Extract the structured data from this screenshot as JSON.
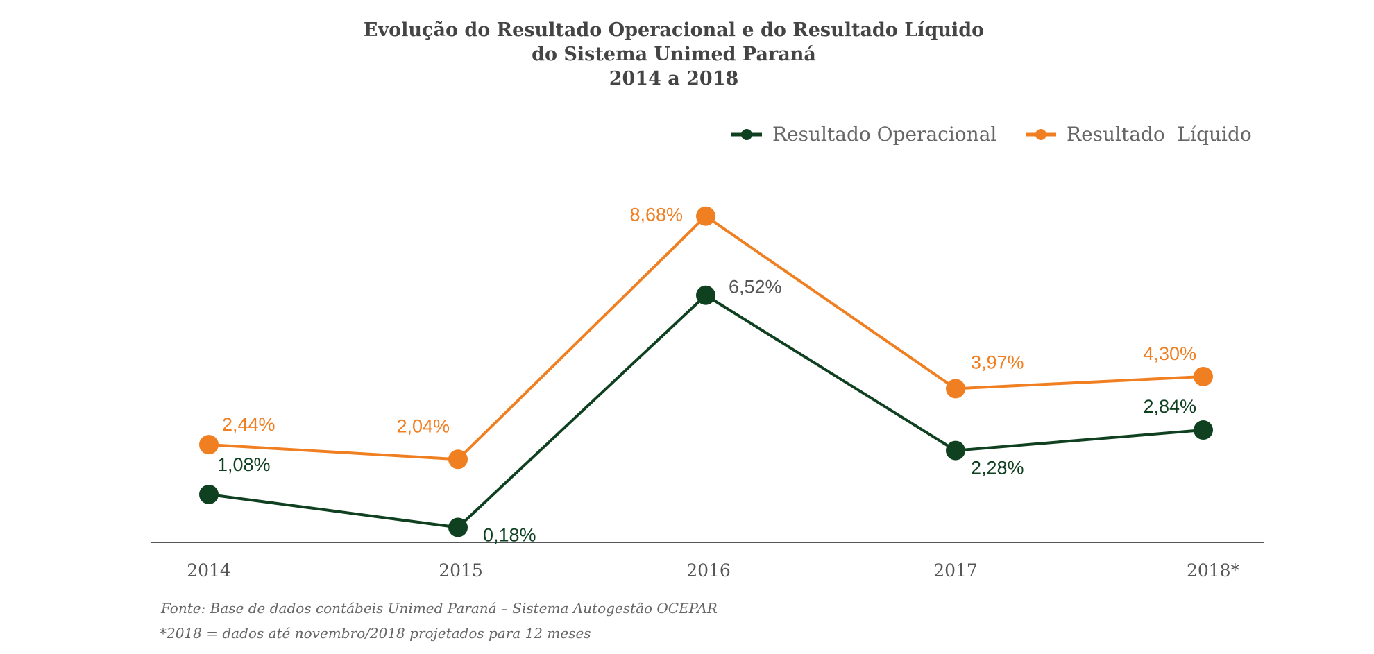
{
  "chart_data": {
    "type": "line",
    "title": [
      "Evolução do Resultado Operacional e do Resultado Líquido",
      "do Sistema Unimed Paraná",
      "2014 a 2018"
    ],
    "categories": [
      "2014",
      "2015",
      "2016",
      "2017",
      "2018*"
    ],
    "series": [
      {
        "name": "Resultado Operacional",
        "color": "#0f4020",
        "values": [
          1.08,
          0.18,
          6.52,
          2.28,
          2.84
        ],
        "labels": [
          "1,08%",
          "0,18%",
          "6,52%",
          "2,28%",
          "2,84%"
        ]
      },
      {
        "name": "Resultado  Líquido",
        "color": "#f07f22",
        "values": [
          2.44,
          2.04,
          8.68,
          3.97,
          4.3
        ],
        "labels": [
          "2,44%",
          "2,04%",
          "8,68%",
          "3,97%",
          "4,30%"
        ]
      }
    ],
    "grid": false,
    "legend_position": "top-right"
  },
  "notes": [
    "Fonte: Base de dados contábeis Unimed Paraná – Sistema Autogestão OCEPAR",
    "*2018 = dados até novembro/2018 projetados para 12 meses"
  ],
  "colors": {
    "axis": "#555555",
    "operational_label": "#0f4020",
    "operational_peak_label": "#555555",
    "net_label": "#f07f22"
  }
}
